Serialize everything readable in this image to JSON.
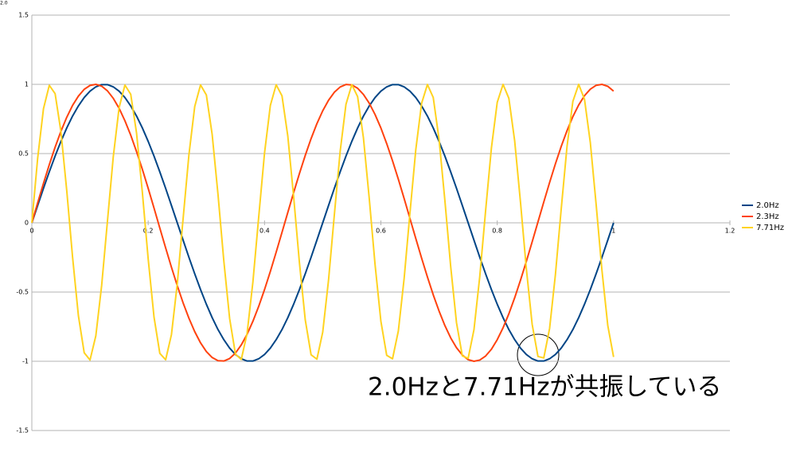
{
  "chart_data": {
    "type": "line",
    "stray_label": "2.0",
    "annotation": "2.0Hzと7.71Hzが共振している",
    "xlim": [
      0,
      1.2
    ],
    "xticks": [
      0,
      0.2,
      0.4,
      0.6,
      0.8,
      1,
      1.2
    ],
    "ylim": [
      -1.5,
      1.5
    ],
    "yticks": [
      -1.5,
      -1,
      -0.5,
      0,
      0.5,
      1,
      1.5
    ],
    "grid": true,
    "legend": "right",
    "x": [
      0,
      0.01,
      0.02,
      0.03,
      0.04,
      0.05,
      0.06,
      0.07,
      0.08,
      0.09,
      0.1,
      0.11,
      0.12,
      0.13,
      0.14,
      0.15,
      0.16,
      0.17,
      0.18,
      0.19,
      0.2,
      0.21,
      0.22,
      0.23,
      0.24,
      0.25,
      0.26,
      0.27,
      0.28,
      0.29,
      0.3,
      0.31,
      0.32,
      0.33,
      0.34,
      0.35,
      0.36,
      0.37,
      0.38,
      0.39,
      0.4,
      0.41,
      0.42,
      0.43,
      0.44,
      0.45,
      0.46,
      0.47,
      0.48,
      0.49,
      0.5,
      0.51,
      0.52,
      0.53,
      0.54,
      0.55,
      0.56,
      0.57,
      0.58,
      0.59,
      0.6,
      0.61,
      0.62,
      0.63,
      0.64,
      0.65,
      0.66,
      0.67,
      0.68,
      0.69,
      0.7,
      0.71,
      0.72,
      0.73,
      0.74,
      0.75,
      0.76,
      0.77,
      0.78,
      0.79,
      0.8,
      0.81,
      0.82,
      0.83,
      0.84,
      0.85,
      0.86,
      0.87,
      0.88,
      0.89,
      0.9,
      0.91,
      0.92,
      0.93,
      0.94,
      0.95,
      0.96,
      0.97,
      0.98,
      0.99,
      1
    ],
    "series": [
      {
        "name": "2.0Hz",
        "color": "#004586",
        "values": [
          0,
          0.125,
          0.249,
          0.368,
          0.482,
          0.588,
          0.685,
          0.771,
          0.844,
          0.905,
          0.951,
          0.982,
          0.998,
          0.998,
          0.982,
          0.951,
          0.905,
          0.844,
          0.771,
          0.685,
          0.588,
          0.482,
          0.368,
          0.249,
          0.125,
          0,
          -0.125,
          -0.249,
          -0.368,
          -0.482,
          -0.588,
          -0.685,
          -0.771,
          -0.844,
          -0.905,
          -0.951,
          -0.982,
          -0.998,
          -0.998,
          -0.982,
          -0.951,
          -0.905,
          -0.844,
          -0.771,
          -0.685,
          -0.588,
          -0.482,
          -0.368,
          -0.249,
          -0.125,
          0,
          0.125,
          0.249,
          0.368,
          0.482,
          0.588,
          0.685,
          0.771,
          0.844,
          0.905,
          0.951,
          0.982,
          0.998,
          0.998,
          0.982,
          0.951,
          0.905,
          0.844,
          0.771,
          0.685,
          0.588,
          0.482,
          0.368,
          0.249,
          0.125,
          0,
          -0.125,
          -0.249,
          -0.368,
          -0.482,
          -0.588,
          -0.685,
          -0.771,
          -0.844,
          -0.905,
          -0.951,
          -0.982,
          -0.998,
          -0.998,
          -0.982,
          -0.951,
          -0.905,
          -0.844,
          -0.771,
          -0.685,
          -0.588,
          -0.482,
          -0.368,
          -0.249,
          -0.125,
          0
        ]
      },
      {
        "name": "2.3Hz",
        "color": "#ff420e",
        "values": [
          0,
          0.144,
          0.285,
          0.42,
          0.546,
          0.661,
          0.762,
          0.848,
          0.915,
          0.964,
          0.992,
          1,
          0.987,
          0.953,
          0.899,
          0.827,
          0.737,
          0.633,
          0.514,
          0.386,
          0.249,
          0.107,
          -0.038,
          -0.181,
          -0.321,
          -0.454,
          -0.578,
          -0.689,
          -0.786,
          -0.867,
          -0.93,
          -0.973,
          -0.996,
          -0.998,
          -0.98,
          -0.941,
          -0.882,
          -0.805,
          -0.711,
          -0.603,
          -0.482,
          -0.351,
          -0.212,
          -0.069,
          0.075,
          0.218,
          0.356,
          0.487,
          0.608,
          0.716,
          0.809,
          0.885,
          0.943,
          0.981,
          0.999,
          0.996,
          0.972,
          0.927,
          0.864,
          0.782,
          0.685,
          0.572,
          0.448,
          0.315,
          0.175,
          0.031,
          -0.113,
          -0.255,
          -0.391,
          -0.52,
          -0.637,
          -0.742,
          -0.831,
          -0.902,
          -0.955,
          -0.988,
          -1,
          -0.991,
          -0.962,
          -0.913,
          -0.844,
          -0.758,
          -0.657,
          -0.541,
          -0.414,
          -0.279,
          -0.138,
          0.006,
          0.15,
          0.291,
          0.426,
          0.552,
          0.666,
          0.767,
          0.851,
          0.918,
          0.965,
          0.993,
          1,
          0.986,
          0.951
        ]
      },
      {
        "name": "7.71Hz",
        "color": "#ffd320",
        "values": [
          0,
          0.466,
          0.824,
          0.993,
          0.933,
          0.659,
          0.233,
          -0.247,
          -0.67,
          -0.938,
          -0.991,
          -0.816,
          -0.453,
          0.014,
          0.478,
          0.832,
          0.995,
          0.928,
          0.648,
          0.219,
          -0.261,
          -0.68,
          -0.943,
          -0.989,
          -0.807,
          -0.44,
          0.029,
          0.491,
          0.84,
          0.996,
          0.923,
          0.637,
          0.205,
          -0.275,
          -0.691,
          -0.948,
          -0.987,
          -0.799,
          -0.427,
          0.043,
          0.504,
          0.848,
          0.997,
          0.917,
          0.626,
          0.19,
          -0.289,
          -0.701,
          -0.953,
          -0.985,
          -0.79,
          -0.414,
          0.058,
          0.516,
          0.856,
          0.998,
          0.911,
          0.614,
          0.176,
          -0.302,
          -0.711,
          -0.957,
          -0.982,
          -0.781,
          -0.401,
          0.072,
          0.528,
          0.863,
          0.999,
          0.905,
          0.603,
          0.162,
          -0.316,
          -0.722,
          -0.961,
          -0.979,
          -0.772,
          -0.387,
          0.087,
          0.541,
          0.87,
          1,
          0.899,
          0.591,
          0.148,
          -0.33,
          -0.732,
          -0.965,
          -0.976,
          -0.763,
          -0.374,
          0.101,
          0.553,
          0.877,
          1,
          0.892,
          0.58,
          0.133,
          -0.343,
          -0.741,
          -0.969
        ]
      }
    ]
  }
}
